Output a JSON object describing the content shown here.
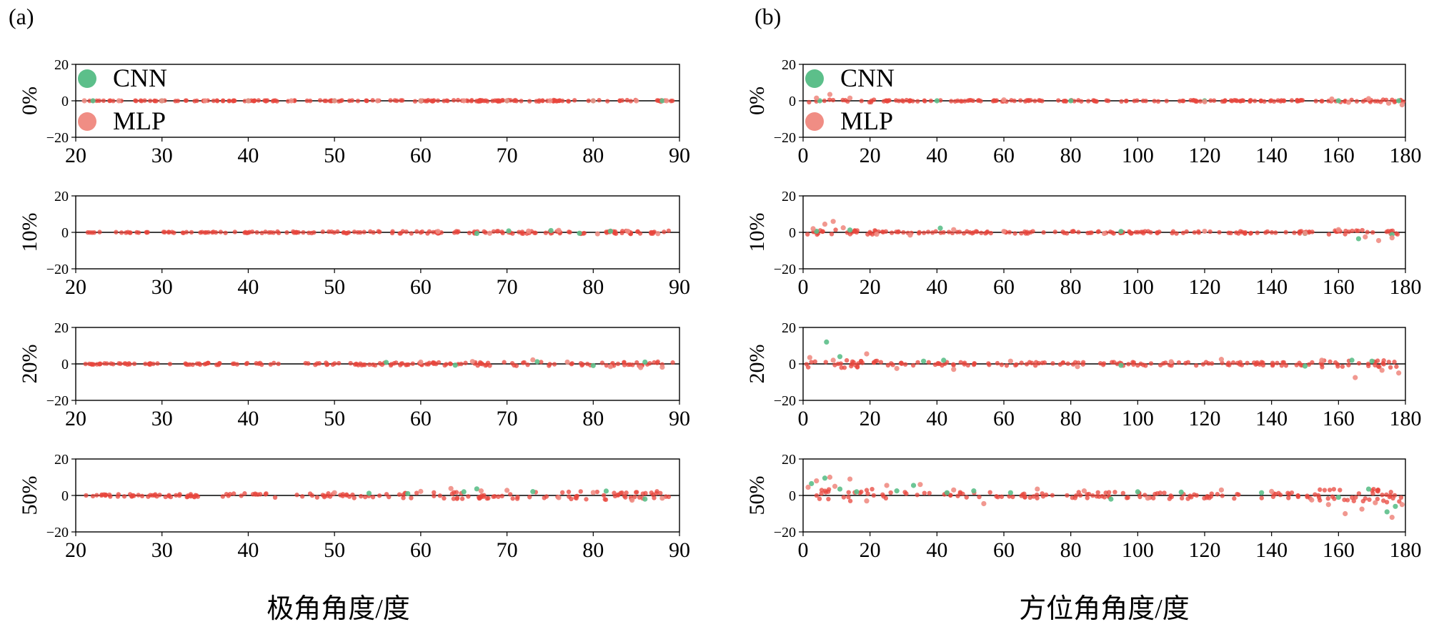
{
  "colors": {
    "cnn": "#5cbf8a",
    "mlp": "#f08d84",
    "mlp_dense": "#e8463c",
    "axis": "#000000",
    "zero_line": "#000000"
  },
  "chart_data": [
    {
      "id": "a",
      "panel_label": "(a)",
      "type": "scatter",
      "xlabel": "极角角度/度",
      "xlim": [
        20,
        90
      ],
      "xticks": [
        "20",
        "30",
        "40",
        "50",
        "60",
        "70",
        "80",
        "90"
      ],
      "xtick_values": [
        20,
        30,
        40,
        50,
        60,
        70,
        80,
        90
      ],
      "ylim": [
        -20,
        20
      ],
      "yticks": [
        "20",
        "0",
        "−20"
      ],
      "ytick_values": [
        20,
        0,
        -20
      ],
      "legend": [
        "CNN",
        "MLP"
      ],
      "rows": [
        {
          "label": "0%",
          "noise_level": 0,
          "series": [
            {
              "name": "CNN",
              "x": [
                22,
                30,
                40,
                50,
                60,
                70,
                80,
                88
              ],
              "y": [
                0,
                0,
                0,
                0,
                0,
                0,
                0,
                0
              ]
            },
            {
              "name": "MLP",
              "x": [
                21,
                25,
                30,
                35,
                40,
                45,
                50,
                55,
                60,
                65,
                70,
                75,
                80,
                85,
                88.5
              ],
              "y": [
                0,
                0,
                0,
                0,
                0,
                0,
                0,
                0,
                0,
                0,
                0,
                0,
                0,
                0,
                0
              ]
            }
          ]
        },
        {
          "label": "10%",
          "noise_level": 10,
          "series": [
            {
              "name": "CNN",
              "x": [
                66.5,
                70.2,
                75.1,
                78.4,
                82.0
              ],
              "y": [
                -0.6,
                0.8,
                1.0,
                -0.5,
                0.6
              ]
            },
            {
              "name": "MLP",
              "x": [
                62.0,
                68.0,
                72.5,
                76.0,
                80.5,
                84.0,
                87.5
              ],
              "y": [
                0.5,
                -0.5,
                0.7,
                1.1,
                -0.8,
                0.6,
                -0.7
              ]
            }
          ]
        },
        {
          "label": "20%",
          "noise_level": 20,
          "series": [
            {
              "name": "CNN",
              "x": [
                56.0,
                64.0,
                73.5,
                80.0,
                86.0
              ],
              "y": [
                0.8,
                -0.7,
                1.2,
                -0.9,
                1.0
              ]
            },
            {
              "name": "MLP",
              "x": [
                60.0,
                66.0,
                73.0,
                77.0,
                82.0,
                85.5,
                88.0
              ],
              "y": [
                1.0,
                1.3,
                2.2,
                1.0,
                -1.5,
                -2.0,
                -1.8
              ]
            }
          ]
        },
        {
          "label": "50%",
          "noise_level": 50,
          "series": [
            {
              "name": "CNN",
              "x": [
                54.0,
                58.5,
                65.0,
                66.5,
                73.0,
                81.5,
                86.0
              ],
              "y": [
                1.2,
                1.0,
                2.0,
                3.6,
                2.1,
                2.4,
                -2.0
              ]
            },
            {
              "name": "MLP",
              "x": [
                50.0,
                60.0,
                63.5,
                67.0,
                70.0,
                76.0,
                80.0,
                84.5,
                88.0
              ],
              "y": [
                1.5,
                2.2,
                3.8,
                2.5,
                2.8,
                -1.2,
                1.6,
                -2.6,
                -1.5
              ]
            }
          ]
        }
      ]
    },
    {
      "id": "b",
      "panel_label": "(b)",
      "type": "scatter",
      "xlabel": "方位角角度/度",
      "xlim": [
        0,
        180
      ],
      "xticks": [
        "0",
        "20",
        "40",
        "60",
        "80",
        "100",
        "120",
        "140",
        "160",
        "180"
      ],
      "xtick_values": [
        0,
        20,
        40,
        60,
        80,
        100,
        120,
        140,
        160,
        180
      ],
      "ylim": [
        -20,
        20
      ],
      "yticks": [
        "20",
        "0",
        "−20"
      ],
      "ytick_values": [
        20,
        0,
        -20
      ],
      "legend": [
        "CNN",
        "MLP"
      ],
      "rows": [
        {
          "label": "0%",
          "noise_level": 0,
          "series": [
            {
              "name": "CNN",
              "x": [
                5,
                40,
                80,
                120,
                160,
                178
              ],
              "y": [
                0,
                0,
                0,
                0,
                0,
                0
              ]
            },
            {
              "name": "MLP",
              "x": [
                4.0,
                8.0,
                14.0,
                60.0,
                120.0,
                158.0,
                163.0,
                169.0,
                175.0,
                179.0
              ],
              "y": [
                1.5,
                3.5,
                1.5,
                0.5,
                -0.5,
                1.0,
                -0.8,
                1.2,
                -1.3,
                -2.2
              ]
            }
          ]
        },
        {
          "label": "10%",
          "noise_level": 10,
          "series": [
            {
              "name": "CNN",
              "x": [
                4.0,
                14.0,
                41.0,
                95.0,
                150.0,
                166.0,
                176.0
              ],
              "y": [
                0.6,
                1.3,
                2.3,
                0.5,
                -0.6,
                -3.5,
                -1.2
              ]
            },
            {
              "name": "MLP",
              "x": [
                3.0,
                6.5,
                9.0,
                12.0,
                22.0,
                32.0,
                45.0,
                60.0,
                90.0,
                120.0,
                150.0,
                160.0,
                168.0,
                172.0,
                176.0
              ],
              "y": [
                2.0,
                4.5,
                6.0,
                2.5,
                -1.0,
                -1.5,
                1.5,
                0.5,
                -0.6,
                0.6,
                -0.5,
                1.5,
                -2.5,
                -4.5,
                -3.0
              ]
            }
          ]
        },
        {
          "label": "20%",
          "noise_level": 20,
          "series": [
            {
              "name": "CNN",
              "x": [
                7.0,
                11.0,
                36.0,
                42.0,
                95.0,
                150.0,
                164.0,
                170.0
              ],
              "y": [
                12.0,
                4.0,
                1.5,
                2.0,
                -0.8,
                -1.2,
                2.0,
                1.5
              ]
            },
            {
              "name": "MLP",
              "x": [
                2.0,
                9.0,
                19.0,
                28.0,
                45.0,
                62.0,
                82.0,
                110.0,
                125.0,
                155.0,
                165.0,
                173.0,
                178.0
              ],
              "y": [
                3.5,
                2.0,
                5.5,
                -2.5,
                -3.0,
                1.5,
                -1.5,
                1.2,
                2.5,
                2.0,
                -7.5,
                -3.5,
                -5.0
              ]
            }
          ]
        },
        {
          "label": "50%",
          "noise_level": 50,
          "series": [
            {
              "name": "CNN",
              "x": [
                2.5,
                6.5,
                11.0,
                16.0,
                28.0,
                33.0,
                43.0,
                51.0,
                62.0,
                92.0,
                100.0,
                113.0,
                137.0,
                160.0,
                169.0,
                174.5,
                177.0
              ],
              "y": [
                6.5,
                9.5,
                3.5,
                2.0,
                2.5,
                5.5,
                1.5,
                2.5,
                1.5,
                -2.0,
                2.0,
                1.8,
                1.5,
                -1.0,
                3.5,
                -9.0,
                -6.0
              ]
            },
            {
              "name": "MLP",
              "x": [
                1.5,
                4.0,
                8.0,
                9.5,
                14.0,
                19.0,
                25.0,
                35.0,
                45.0,
                54.0,
                70.0,
                84.0,
                103.0,
                125.0,
                140.0,
                152.0,
                157.0,
                162.0,
                167.0,
                171.0,
                176.0,
                179.0
              ],
              "y": [
                4.5,
                8.0,
                10.0,
                5.0,
                9.0,
                -3.0,
                5.5,
                6.0,
                3.0,
                -4.5,
                3.5,
                2.5,
                -1.5,
                3.0,
                2.2,
                -2.5,
                -5.0,
                -10.0,
                -7.5,
                -4.0,
                -12.0,
                -5.0
              ]
            }
          ]
        }
      ]
    }
  ]
}
